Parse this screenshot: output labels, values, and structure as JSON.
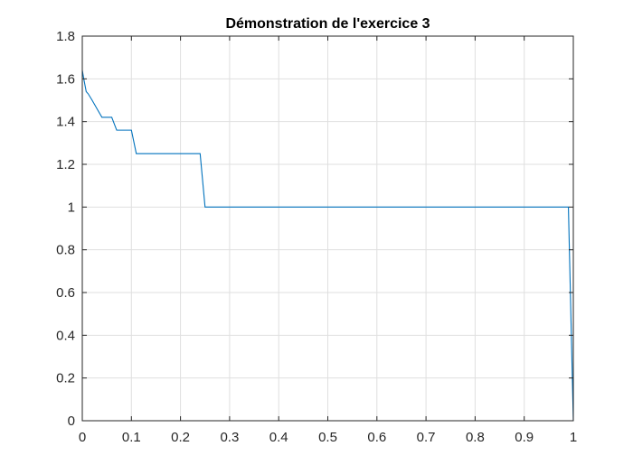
{
  "chart_data": {
    "type": "line",
    "title": "Démonstration de l'exercice 3",
    "xlabel": "",
    "ylabel": "",
    "xlim": [
      0,
      1
    ],
    "ylim": [
      0,
      1.8
    ],
    "x_ticks": [
      0,
      0.1,
      0.2,
      0.3,
      0.4,
      0.5,
      0.6,
      0.7,
      0.8,
      0.9,
      1
    ],
    "x_tick_labels": [
      "0",
      "0.1",
      "0.2",
      "0.3",
      "0.4",
      "0.5",
      "0.6",
      "0.7",
      "0.8",
      "0.9",
      "1"
    ],
    "y_ticks": [
      0,
      0.2,
      0.4,
      0.6,
      0.8,
      1,
      1.2,
      1.4,
      1.6,
      1.8
    ],
    "y_tick_labels": [
      "0",
      "0.2",
      "0.4",
      "0.6",
      "0.8",
      "1",
      "1.2",
      "1.4",
      "1.6",
      "1.8"
    ],
    "grid": true,
    "line_color": "#0072BD",
    "series": [
      {
        "x": [
          0,
          0.003,
          0.008,
          0.012,
          0.02,
          0.03,
          0.04,
          0.06,
          0.07,
          0.1,
          0.11,
          0.24,
          0.25,
          0.99,
          1.0
        ],
        "y": [
          1.64,
          1.6,
          1.54,
          1.53,
          1.5,
          1.46,
          1.42,
          1.42,
          1.36,
          1.36,
          1.25,
          1.25,
          1.0,
          1.0,
          0.0
        ]
      }
    ]
  }
}
